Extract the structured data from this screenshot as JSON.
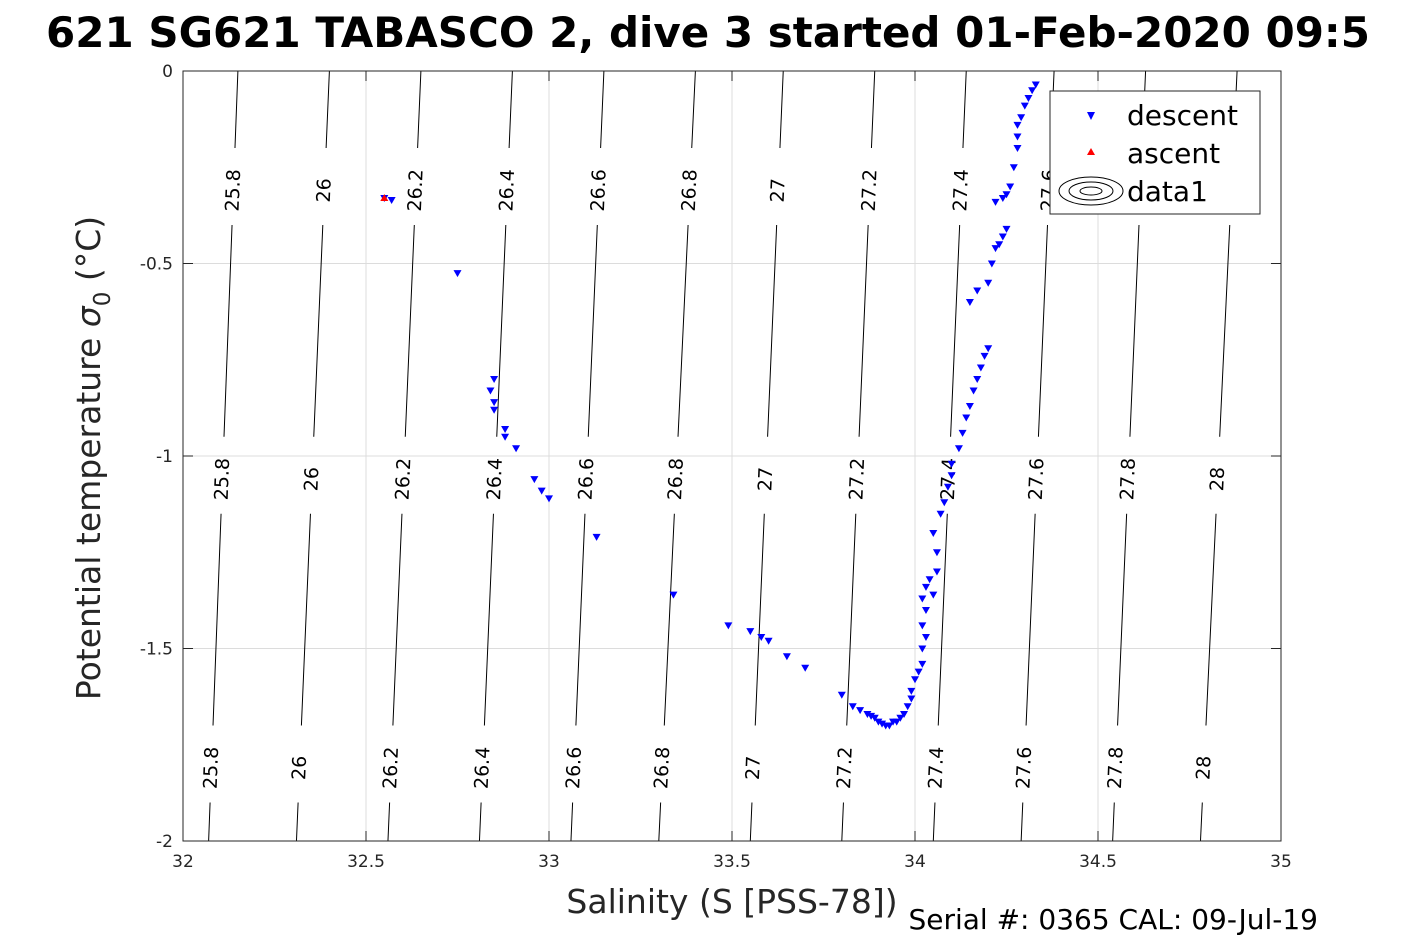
{
  "chart_data": {
    "type": "scatter",
    "title": "621 SG621 TABASCO 2, dive 3 started 01-Feb-2020 09:5",
    "xlabel": "Salinity (S [PSS-78])",
    "ylabel_main": "Potential temperature ",
    "ylabel_symbol": "σ",
    "ylabel_sub": "0",
    "ylabel_unit": " (°C)",
    "xlim": [
      32,
      35
    ],
    "ylim": [
      -2,
      0
    ],
    "xticks": [
      32,
      32.5,
      33,
      33.5,
      34,
      34.5,
      35
    ],
    "xtick_labels": [
      "32",
      "32.5",
      "33",
      "33.5",
      "34",
      "34.5",
      "35"
    ],
    "yticks": [
      -2,
      -1.5,
      -1,
      -0.5,
      0
    ],
    "ytick_labels": [
      "-2",
      "-1.5",
      "-1",
      "-0.5",
      "0"
    ],
    "grid": true,
    "legend_position": "top-right",
    "series": [
      {
        "name": "descent",
        "color": "#0000ff",
        "marker": "triangle-down",
        "points": [
          [
            32.55,
            -0.33
          ],
          [
            32.57,
            -0.335
          ],
          [
            32.75,
            -0.525
          ],
          [
            32.85,
            -0.8
          ],
          [
            32.84,
            -0.83
          ],
          [
            32.85,
            -0.86
          ],
          [
            32.85,
            -0.88
          ],
          [
            32.88,
            -0.93
          ],
          [
            32.88,
            -0.95
          ],
          [
            32.91,
            -0.98
          ],
          [
            32.96,
            -1.06
          ],
          [
            32.98,
            -1.09
          ],
          [
            33.0,
            -1.11
          ],
          [
            33.13,
            -1.21
          ],
          [
            33.34,
            -1.36
          ],
          [
            33.49,
            -1.44
          ],
          [
            33.55,
            -1.455
          ],
          [
            33.58,
            -1.47
          ],
          [
            33.6,
            -1.48
          ],
          [
            33.65,
            -1.52
          ],
          [
            33.7,
            -1.55
          ],
          [
            33.8,
            -1.62
          ],
          [
            33.83,
            -1.65
          ],
          [
            33.85,
            -1.66
          ],
          [
            33.87,
            -1.67
          ],
          [
            33.88,
            -1.675
          ],
          [
            33.89,
            -1.68
          ],
          [
            33.9,
            -1.69
          ],
          [
            33.91,
            -1.695
          ],
          [
            33.92,
            -1.7
          ],
          [
            33.93,
            -1.7
          ],
          [
            33.94,
            -1.69
          ],
          [
            33.95,
            -1.69
          ],
          [
            33.96,
            -1.68
          ],
          [
            33.97,
            -1.67
          ],
          [
            33.98,
            -1.65
          ],
          [
            33.99,
            -1.63
          ],
          [
            33.99,
            -1.61
          ],
          [
            34.0,
            -1.58
          ],
          [
            34.01,
            -1.56
          ],
          [
            34.02,
            -1.54
          ],
          [
            34.02,
            -1.5
          ],
          [
            34.03,
            -1.47
          ],
          [
            34.02,
            -1.44
          ],
          [
            34.03,
            -1.4
          ],
          [
            34.02,
            -1.37
          ],
          [
            34.03,
            -1.34
          ],
          [
            34.04,
            -1.32
          ],
          [
            34.05,
            -1.36
          ],
          [
            34.06,
            -1.3
          ],
          [
            34.06,
            -1.25
          ],
          [
            34.05,
            -1.2
          ],
          [
            34.07,
            -1.15
          ],
          [
            34.08,
            -1.12
          ],
          [
            34.09,
            -1.08
          ],
          [
            34.1,
            -1.05
          ],
          [
            34.1,
            -1.02
          ],
          [
            34.12,
            -0.98
          ],
          [
            34.13,
            -0.94
          ],
          [
            34.14,
            -0.9
          ],
          [
            34.15,
            -0.87
          ],
          [
            34.16,
            -0.83
          ],
          [
            34.17,
            -0.8
          ],
          [
            34.18,
            -0.77
          ],
          [
            34.19,
            -0.74
          ],
          [
            34.2,
            -0.72
          ],
          [
            34.15,
            -0.6
          ],
          [
            34.17,
            -0.57
          ],
          [
            34.2,
            -0.55
          ],
          [
            34.21,
            -0.5
          ],
          [
            34.22,
            -0.46
          ],
          [
            34.23,
            -0.45
          ],
          [
            34.24,
            -0.43
          ],
          [
            34.25,
            -0.41
          ],
          [
            34.22,
            -0.34
          ],
          [
            34.24,
            -0.33
          ],
          [
            34.25,
            -0.32
          ],
          [
            34.26,
            -0.3
          ],
          [
            34.27,
            -0.25
          ],
          [
            34.28,
            -0.2
          ],
          [
            34.28,
            -0.17
          ],
          [
            34.28,
            -0.14
          ],
          [
            34.29,
            -0.12
          ],
          [
            34.3,
            -0.09
          ],
          [
            34.31,
            -0.07
          ],
          [
            34.32,
            -0.05
          ],
          [
            34.33,
            -0.035
          ]
        ]
      },
      {
        "name": "ascent",
        "color": "#ff0000",
        "marker": "triangle-up",
        "points": [
          [
            32.55,
            -0.33
          ]
        ]
      }
    ],
    "contours": {
      "name": "data1",
      "levels": [
        25.8,
        26,
        26.2,
        26.4,
        26.6,
        26.8,
        27,
        27.2,
        27.4,
        27.6,
        27.8,
        28
      ],
      "level_labels": [
        "25.8",
        "26",
        "26.2",
        "26.4",
        "26.6",
        "26.8",
        "27",
        "27.2",
        "27.4",
        "27.6",
        "27.8",
        "28"
      ],
      "x_at_top": [
        32.15,
        32.4,
        32.65,
        32.9,
        33.15,
        33.4,
        33.64,
        33.89,
        34.14,
        34.38,
        34.63,
        34.88
      ],
      "x_at_bottom": [
        32.07,
        32.31,
        32.56,
        32.81,
        33.06,
        33.3,
        33.55,
        33.8,
        34.05,
        34.29,
        34.54,
        34.78
      ],
      "label_y": [
        -0.31,
        -1.06,
        -1.81
      ]
    }
  },
  "footer": {
    "serial": "Serial #: 0365  CAL: 09-Jul-19"
  }
}
